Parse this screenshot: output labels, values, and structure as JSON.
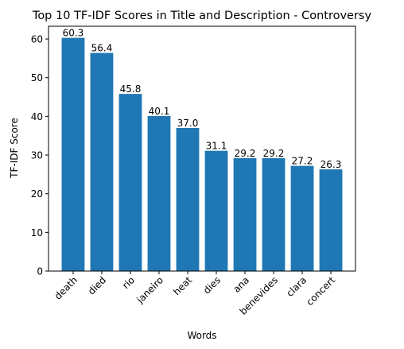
{
  "chart_data": {
    "type": "bar",
    "title": "Top 10 TF-IDF Scores in Title and Description - Controversy",
    "xlabel": "Words",
    "ylabel": "TF-IDF Score",
    "categories": [
      "death",
      "died",
      "rio",
      "janeiro",
      "heat",
      "dies",
      "ana",
      "benevides",
      "clara",
      "concert"
    ],
    "values": [
      60.3,
      56.4,
      45.8,
      40.1,
      37.0,
      31.1,
      29.2,
      29.2,
      27.2,
      26.3
    ],
    "value_labels": [
      "60.3",
      "56.4",
      "45.8",
      "40.1",
      "37.0",
      "31.1",
      "29.2",
      "29.2",
      "27.2",
      "26.3"
    ],
    "ylim": [
      0,
      63.3
    ],
    "yticks": [
      0,
      10,
      20,
      30,
      40,
      50,
      60
    ],
    "grid": false,
    "legend": "none",
    "bar_color": "#1f77b4",
    "xtick_rotation_deg": 45
  }
}
